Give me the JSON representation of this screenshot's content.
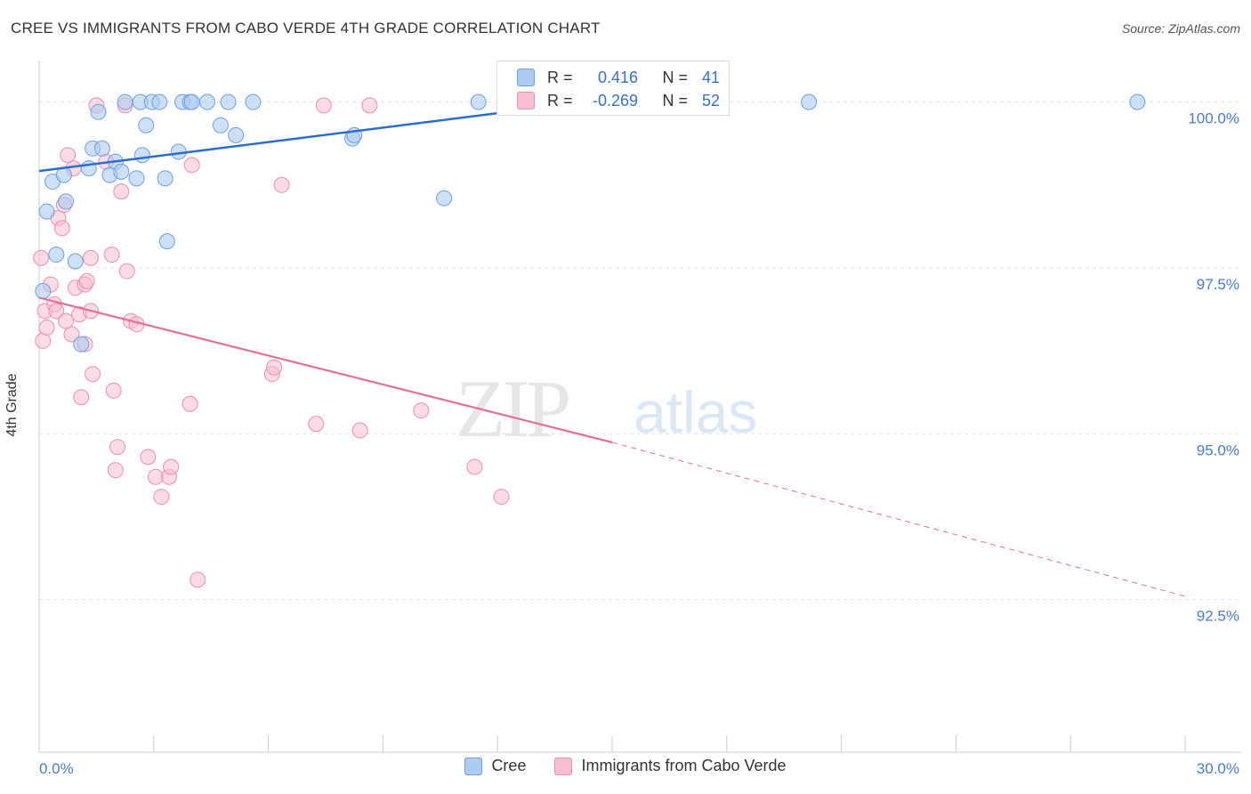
{
  "header": {
    "title": "CREE VS IMMIGRANTS FROM CABO VERDE 4TH GRADE CORRELATION CHART",
    "source": "Source: ZipAtlas.com"
  },
  "watermark": {
    "zip": "ZIP",
    "atlas": "atlas"
  },
  "legend_box": {
    "rows": [
      {
        "r_label": "R =",
        "r_value": "0.416",
        "n_label": "N =",
        "n_value": "41"
      },
      {
        "r_label": "R =",
        "r_value": "-0.269",
        "n_label": "N =",
        "n_value": "52"
      }
    ]
  },
  "legend": {
    "items": [
      "Cree",
      "Immigrants from Cabo Verde"
    ]
  },
  "colors": {
    "cree_fill": "#aecbf0",
    "cree_stroke": "#6f9fe0",
    "cree_line": "#2a6dcc",
    "cabo_fill": "#f7bdd0",
    "cabo_stroke": "#eb8fae",
    "cabo_line": "#e07098",
    "tick_label": "#4a7cc9",
    "grid": "#e2e2e2"
  },
  "chart_data": {
    "type": "scatter",
    "title": "CREE VS IMMIGRANTS FROM CABO VERDE 4TH GRADE CORRELATION CHART",
    "xlabel": "",
    "ylabel": "4th Grade",
    "xlim": [
      0,
      30
    ],
    "ylim": [
      90.2,
      100.8
    ],
    "x_tick_labels": [
      "0.0%",
      "30.0%"
    ],
    "y_ticks": [
      92.5,
      95.0,
      97.5,
      100.0
    ],
    "y_tick_labels": [
      "92.5%",
      "95.0%",
      "97.5%",
      "100.0%"
    ],
    "grid": true,
    "legend_position": "bottom",
    "series": [
      {
        "name": "Cree",
        "r": 0.416,
        "n": 41,
        "trend": {
          "x": [
            0,
            15.0
          ],
          "y": [
            98.96,
            100.05
          ]
        },
        "points": [
          [
            0.2,
            98.35
          ],
          [
            0.35,
            98.8
          ],
          [
            0.45,
            97.7
          ],
          [
            0.65,
            98.9
          ],
          [
            0.7,
            98.5
          ],
          [
            0.95,
            97.6
          ],
          [
            1.1,
            96.35
          ],
          [
            1.3,
            99.0
          ],
          [
            1.4,
            99.3
          ],
          [
            1.55,
            99.85
          ],
          [
            1.65,
            99.3
          ],
          [
            1.85,
            98.9
          ],
          [
            2.0,
            99.1
          ],
          [
            2.15,
            98.95
          ],
          [
            2.25,
            100.0
          ],
          [
            2.55,
            98.85
          ],
          [
            2.65,
            100.0
          ],
          [
            2.7,
            99.2
          ],
          [
            2.8,
            99.65
          ],
          [
            2.95,
            100.0
          ],
          [
            3.15,
            100.0
          ],
          [
            3.3,
            98.85
          ],
          [
            3.35,
            97.9
          ],
          [
            3.65,
            99.25
          ],
          [
            3.75,
            100.0
          ],
          [
            3.95,
            100.0
          ],
          [
            4.0,
            100.0
          ],
          [
            4.4,
            100.0
          ],
          [
            4.75,
            99.65
          ],
          [
            4.95,
            100.0
          ],
          [
            5.15,
            99.5
          ],
          [
            5.6,
            100.0
          ],
          [
            8.2,
            99.45
          ],
          [
            8.25,
            99.5
          ],
          [
            10.6,
            98.55
          ],
          [
            11.5,
            100.0
          ],
          [
            12.85,
            100.0
          ],
          [
            14.45,
            100.0
          ],
          [
            20.15,
            100.0
          ],
          [
            28.75,
            100.0
          ],
          [
            0.1,
            97.15
          ]
        ]
      },
      {
        "name": "Immigrants from Cabo Verde",
        "r": -0.269,
        "n": 52,
        "trend": {
          "x": [
            0,
            15.0
          ],
          "y": [
            97.05,
            94.87
          ]
        },
        "trend_dashed": {
          "x": [
            15.0,
            30.0
          ],
          "y": [
            94.87,
            92.55
          ]
        },
        "points": [
          [
            0.05,
            97.65
          ],
          [
            0.1,
            96.4
          ],
          [
            0.15,
            96.85
          ],
          [
            0.2,
            96.6
          ],
          [
            0.3,
            97.25
          ],
          [
            0.4,
            96.95
          ],
          [
            0.45,
            96.85
          ],
          [
            0.5,
            98.25
          ],
          [
            0.6,
            98.1
          ],
          [
            0.65,
            98.45
          ],
          [
            0.7,
            96.7
          ],
          [
            0.75,
            99.2
          ],
          [
            0.85,
            96.5
          ],
          [
            0.9,
            99.0
          ],
          [
            0.95,
            97.2
          ],
          [
            1.05,
            96.8
          ],
          [
            1.1,
            95.55
          ],
          [
            1.2,
            96.35
          ],
          [
            1.2,
            97.25
          ],
          [
            1.25,
            97.3
          ],
          [
            1.35,
            97.65
          ],
          [
            1.35,
            96.85
          ],
          [
            1.4,
            95.9
          ],
          [
            1.5,
            99.95
          ],
          [
            1.75,
            99.1
          ],
          [
            1.9,
            97.7
          ],
          [
            1.95,
            95.65
          ],
          [
            2.0,
            94.45
          ],
          [
            2.05,
            94.8
          ],
          [
            2.15,
            98.65
          ],
          [
            2.25,
            99.95
          ],
          [
            2.3,
            97.45
          ],
          [
            2.4,
            96.7
          ],
          [
            2.55,
            96.65
          ],
          [
            2.85,
            94.65
          ],
          [
            3.05,
            94.35
          ],
          [
            3.2,
            94.05
          ],
          [
            3.4,
            94.35
          ],
          [
            3.45,
            94.5
          ],
          [
            3.95,
            95.45
          ],
          [
            4.0,
            99.05
          ],
          [
            4.15,
            92.8
          ],
          [
            6.1,
            95.9
          ],
          [
            6.15,
            96.0
          ],
          [
            6.35,
            98.75
          ],
          [
            7.25,
            95.15
          ],
          [
            7.45,
            99.95
          ],
          [
            8.4,
            95.05
          ],
          [
            8.65,
            99.95
          ],
          [
            10.0,
            95.35
          ],
          [
            11.4,
            94.5
          ],
          [
            12.1,
            94.05
          ]
        ]
      }
    ]
  }
}
